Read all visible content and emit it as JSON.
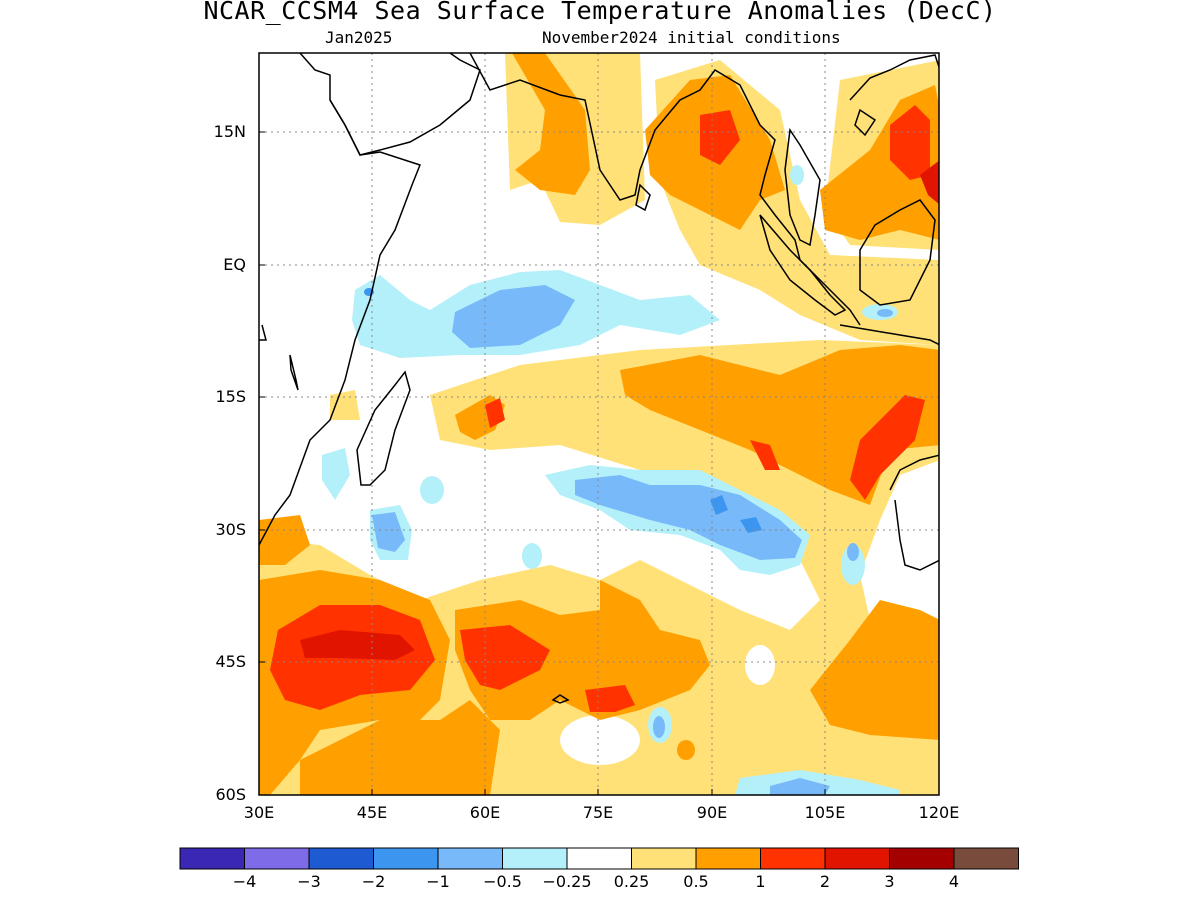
{
  "title": "NCAR_CCSM4 Sea Surface Temperature Anomalies (DecC)",
  "subtitle_left": "Jan2025",
  "subtitle_right": "November2024 initial conditions",
  "map": {
    "lat_labels": [
      "15N",
      "EQ",
      "15S",
      "30S",
      "45S",
      "60S"
    ],
    "lon_labels": [
      "30E",
      "45E",
      "60E",
      "75E",
      "90E",
      "105E",
      "120E"
    ],
    "lat_range": [
      -60,
      25
    ],
    "lon_range": [
      30,
      120
    ],
    "grid": "dotted"
  },
  "colorbar": {
    "colors": [
      "#3a28b4",
      "#7d6be8",
      "#1e5ad2",
      "#3c96f0",
      "#78b9fa",
      "#b4f0fa",
      "#ffffff",
      "#ffe178",
      "#ffa000",
      "#ff3200",
      "#e11400",
      "#a50000",
      "#784b3c"
    ],
    "labels": [
      "−4",
      "−3",
      "−2",
      "−1",
      "−0.5",
      "−0.25",
      "0.25",
      "0.5",
      "1",
      "2",
      "3",
      "4"
    ]
  }
}
